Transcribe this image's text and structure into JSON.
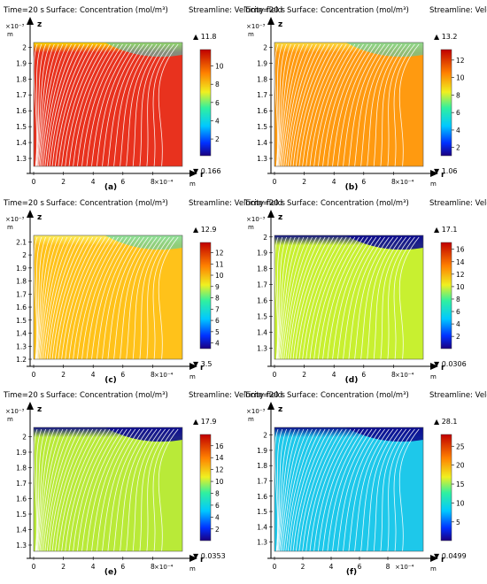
{
  "figure": {
    "panels": [
      {
        "id": "a",
        "header": {
          "time": "Time=20 s",
          "surface": "Surface: Concentration (mol/m³)",
          "streamline": "Streamline: Velocity field"
        },
        "caption": "(a)",
        "axis_units": {
          "z_exponent": "×10⁻³",
          "z_unit": "m",
          "r_exponent": "×10⁻⁴",
          "r_unit": "m"
        },
        "axis_letters": {
          "z": "z",
          "r": "r"
        },
        "colorbar": {
          "max_label": "▲ 11.8",
          "min_label": "▼ 0.166"
        },
        "colors": {
          "bulk": "#e8321e",
          "top": "#ffe000"
        }
      },
      {
        "id": "b",
        "header": {
          "time": "Time=20 s",
          "surface": "Surface: Concentration (mol/m³)",
          "streamline": "Streamline: Velocity field"
        },
        "caption": "(b)",
        "axis_units": {
          "z_exponent": "×10⁻³",
          "z_unit": "m",
          "r_exponent": "×10⁻⁴",
          "r_unit": "m"
        },
        "axis_letters": {
          "z": "z",
          "r": "r"
        },
        "colorbar": {
          "max_label": "▲ 13.2",
          "min_label": "▼ 1.06"
        },
        "colors": {
          "bulk": "#ff9a10",
          "top": "#ffe040"
        }
      },
      {
        "id": "c",
        "header": {
          "time": "Time=20 s",
          "surface": "Surface: Concentration (mol/m³)",
          "streamline": "Streamline: Velocity field"
        },
        "caption": "(c)",
        "axis_units": {
          "z_exponent": "×10⁻³",
          "z_unit": "m",
          "r_exponent": "×10⁻⁴",
          "r_unit": "m"
        },
        "axis_letters": {
          "z": "z",
          "r": "r"
        },
        "colorbar": {
          "max_label": "▲ 12.9",
          "min_label": "▼ 3.5"
        },
        "colors": {
          "bulk": "#ffc21a",
          "top": "#fff060"
        }
      },
      {
        "id": "d",
        "header": {
          "time": "Time=20 s",
          "surface": "Surface: Concentration (mol/m³)",
          "streamline": "Streamline: Velocity field"
        },
        "caption": "(d)",
        "axis_units": {
          "z_exponent": "×10⁻³",
          "z_unit": "m",
          "r_exponent": "×10⁻⁴",
          "r_unit": "m"
        },
        "axis_letters": {
          "z": "z",
          "r": "r"
        },
        "colorbar": {
          "max_label": "▲ 17.1",
          "min_label": "▼ 0.0306"
        },
        "colors": {
          "bulk": "#c8f030",
          "top": "#0a0a8c"
        }
      },
      {
        "id": "e",
        "header": {
          "time": "Time=20 s",
          "surface": "Surface: Concentration (mol/m³)",
          "streamline": "Streamline: Velocity field"
        },
        "caption": "(e)",
        "axis_units": {
          "z_exponent": "×10⁻³",
          "z_unit": "m",
          "r_exponent": "×10⁻⁴",
          "r_unit": "m"
        },
        "axis_letters": {
          "z": "z",
          "r": "r"
        },
        "colorbar": {
          "max_label": "▲ 17.9",
          "min_label": "▼ 0.0353"
        },
        "colors": {
          "bulk": "#b9ea38",
          "top": "#0a0a8c"
        }
      },
      {
        "id": "f",
        "header": {
          "time": "Time=20 s",
          "surface": "Surface: Concentration (mol/m³)",
          "streamline": "Streamline: Velocity field"
        },
        "caption": "(f)",
        "axis_units": {
          "z_exponent": "×10⁻³",
          "z_unit": "m",
          "r_exponent": "×10⁻⁴",
          "r_unit": "m"
        },
        "axis_letters": {
          "z": "z",
          "r": "r"
        },
        "colorbar": {
          "max_label": "▲ 28.1",
          "min_label": "▼ 0.0499"
        },
        "colors": {
          "bulk": "#1ec8ea",
          "top": "#0a0a8c"
        }
      }
    ]
  },
  "chart_data": [
    {
      "type": "heatmap",
      "panel": "a",
      "x_ticks": [
        0,
        2,
        4,
        6,
        8
      ],
      "y_ticks": [
        1.3,
        1.4,
        1.5,
        1.6,
        1.7,
        1.8,
        1.9,
        2
      ],
      "xlim": [
        0,
        10
      ],
      "ylim": [
        1.25,
        2.03
      ],
      "colorbar_range": [
        0.166,
        11.8
      ],
      "colorbar_ticks": [
        2,
        4,
        6,
        8,
        10
      ]
    },
    {
      "type": "heatmap",
      "panel": "b",
      "x_ticks": [
        0,
        2,
        4,
        6,
        8
      ],
      "y_ticks": [
        1.3,
        1.4,
        1.5,
        1.6,
        1.7,
        1.8,
        1.9,
        2
      ],
      "xlim": [
        0,
        10
      ],
      "ylim": [
        1.25,
        2.03
      ],
      "colorbar_range": [
        1.06,
        13.2
      ],
      "colorbar_ticks": [
        2,
        4,
        6,
        8,
        10,
        12
      ]
    },
    {
      "type": "heatmap",
      "panel": "c",
      "x_ticks": [
        0,
        2,
        4,
        6,
        8
      ],
      "y_ticks": [
        1.2,
        1.3,
        1.4,
        1.5,
        1.6,
        1.7,
        1.8,
        1.9,
        2,
        2.1
      ],
      "xlim": [
        0,
        10
      ],
      "ylim": [
        1.2,
        2.15
      ],
      "colorbar_range": [
        3.5,
        12.9
      ],
      "colorbar_ticks": [
        4,
        5,
        6,
        7,
        8,
        9,
        10,
        11,
        12
      ]
    },
    {
      "type": "heatmap",
      "panel": "d",
      "x_ticks": [
        0,
        2,
        4,
        6,
        8
      ],
      "y_ticks": [
        1.3,
        1.4,
        1.5,
        1.6,
        1.7,
        1.8,
        1.9,
        2
      ],
      "xlim": [
        0,
        10
      ],
      "ylim": [
        1.23,
        2.01
      ],
      "colorbar_range": [
        0.0306,
        17.1
      ],
      "colorbar_ticks": [
        2,
        4,
        6,
        8,
        10,
        12,
        14,
        16
      ]
    },
    {
      "type": "heatmap",
      "panel": "e",
      "x_ticks": [
        0,
        2,
        4,
        6,
        8
      ],
      "y_ticks": [
        1.3,
        1.4,
        1.5,
        1.6,
        1.7,
        1.8,
        1.9,
        2
      ],
      "xlim": [
        0,
        10
      ],
      "ylim": [
        1.26,
        2.06
      ],
      "colorbar_range": [
        0.0353,
        17.9
      ],
      "colorbar_ticks": [
        2,
        4,
        6,
        8,
        10,
        12,
        14,
        16
      ]
    },
    {
      "type": "heatmap",
      "panel": "f",
      "x_ticks": [
        0,
        2,
        4,
        6,
        8
      ],
      "y_ticks": [
        1.3,
        1.4,
        1.5,
        1.6,
        1.7,
        1.8,
        1.9,
        2
      ],
      "xlim": [
        0,
        10.5
      ],
      "ylim": [
        1.24,
        2.05
      ],
      "colorbar_range": [
        0.0499,
        28.1
      ],
      "colorbar_ticks": [
        5,
        10,
        15,
        20,
        25
      ]
    }
  ]
}
